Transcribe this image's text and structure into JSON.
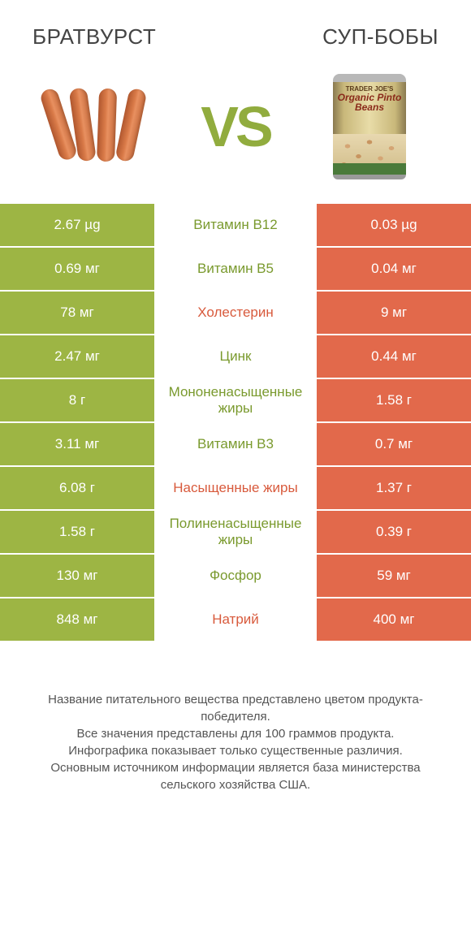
{
  "header": {
    "left_title": "БРАТВУРСТ",
    "right_title": "СУП-БОБЫ"
  },
  "vs_label": "VS",
  "can": {
    "line1": "TRADER JOE'S",
    "line2": "Organic Pinto Beans"
  },
  "colors": {
    "left": "#9db544",
    "right": "#e2694b",
    "nutrient_left_text": "#7a9a2e",
    "nutrient_right_text": "#d85a3c",
    "background": "#ffffff"
  },
  "rows": [
    {
      "left": "2.67 µg",
      "label": "Витамин B12",
      "right": "0.03 µg",
      "winner": "left"
    },
    {
      "left": "0.69 мг",
      "label": "Витамин B5",
      "right": "0.04 мг",
      "winner": "left"
    },
    {
      "left": "78 мг",
      "label": "Холестерин",
      "right": "9 мг",
      "winner": "right"
    },
    {
      "left": "2.47 мг",
      "label": "Цинк",
      "right": "0.44 мг",
      "winner": "left"
    },
    {
      "left": "8 г",
      "label": "Мононенасыщенные жиры",
      "right": "1.58 г",
      "winner": "left"
    },
    {
      "left": "3.11 мг",
      "label": "Витамин B3",
      "right": "0.7 мг",
      "winner": "left"
    },
    {
      "left": "6.08 г",
      "label": "Насыщенные жиры",
      "right": "1.37 г",
      "winner": "right"
    },
    {
      "left": "1.58 г",
      "label": "Полиненасыщенные жиры",
      "right": "0.39 г",
      "winner": "left"
    },
    {
      "left": "130 мг",
      "label": "Фосфор",
      "right": "59 мг",
      "winner": "left"
    },
    {
      "left": "848 мг",
      "label": "Натрий",
      "right": "400 мг",
      "winner": "right"
    }
  ],
  "footer": {
    "line1": "Название питательного вещества представлено цветом продукта-победителя.",
    "line2": "Все значения представлены для 100 граммов продукта.",
    "line3": "Инфографика показывает только существенные различия.",
    "line4": "Основным источником информации является база министерства сельского хозяйства США."
  }
}
